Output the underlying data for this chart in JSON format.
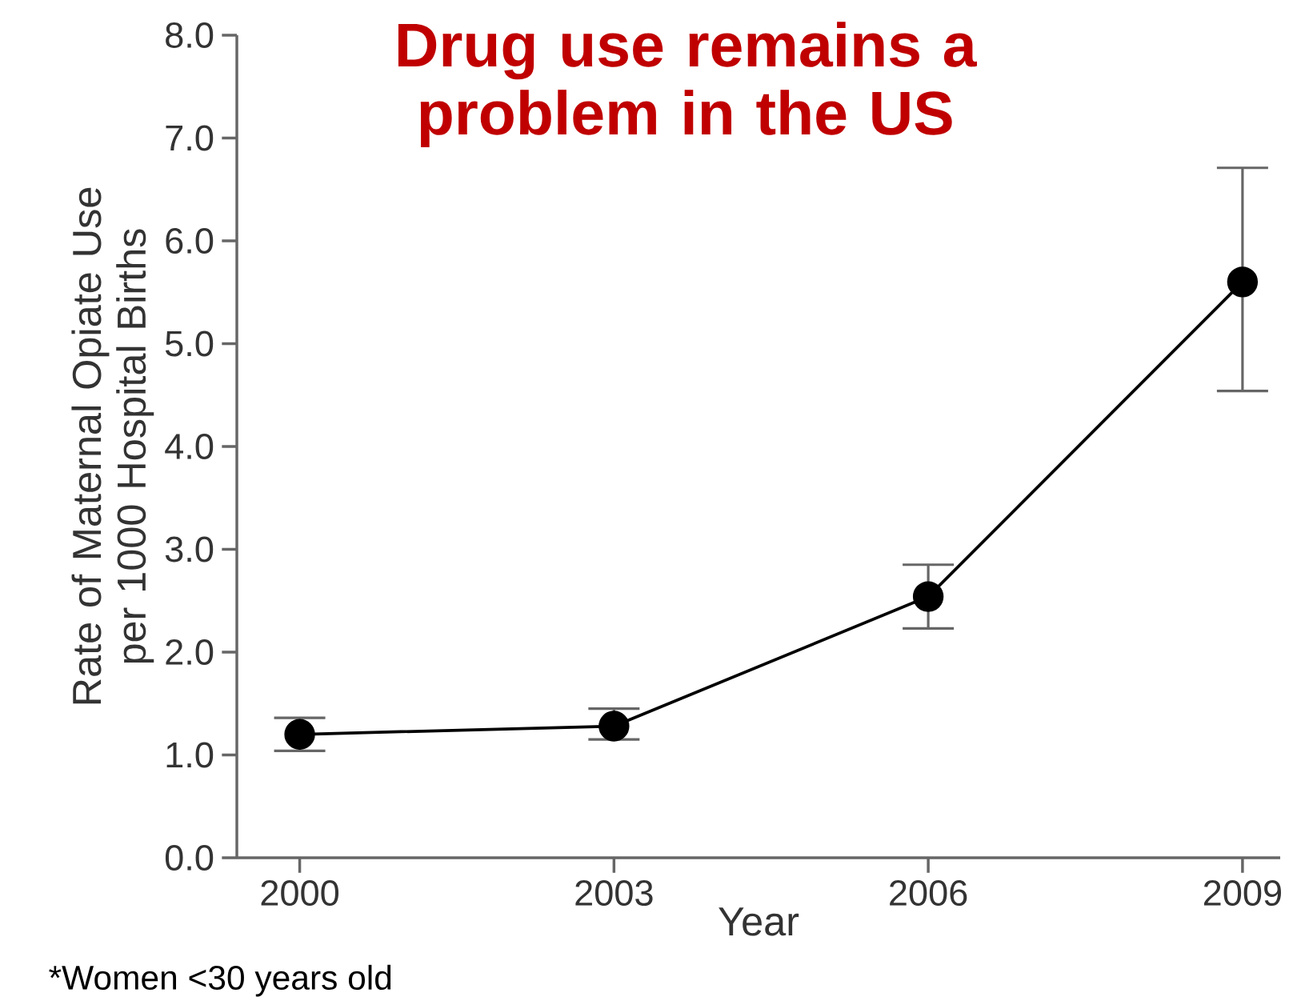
{
  "chart_data": {
    "type": "line",
    "title": "Drug use remains a problem in the US",
    "xlabel": "Year",
    "ylabel": "Rate of Maternal Opiate Use per 1000 Hospital Births",
    "categories": [
      "2000",
      "2003",
      "2006",
      "2009"
    ],
    "series": [
      {
        "color": "#000000",
        "values": [
          1.2,
          1.28,
          2.54,
          5.6
        ],
        "errors": [
          [
            1.04,
            1.36
          ],
          [
            1.15,
            1.45
          ],
          [
            2.23,
            2.85
          ],
          [
            4.54,
            6.71
          ]
        ]
      }
    ],
    "ylim": [
      0,
      8
    ],
    "yticks": [
      {
        "value": 0,
        "label": "0.0"
      },
      {
        "value": 1,
        "label": "1.0"
      },
      {
        "value": 2,
        "label": "2.0"
      },
      {
        "value": 3,
        "label": "3.0"
      },
      {
        "value": 4,
        "label": "4.0"
      },
      {
        "value": 5,
        "label": "5.0"
      },
      {
        "value": 6,
        "label": "6.0"
      },
      {
        "value": 7,
        "label": "7.0"
      },
      {
        "value": 8,
        "label": "8.0"
      }
    ],
    "marker": "circle",
    "line_style": "solid",
    "annotations": [
      "*Women <30 years old"
    ]
  }
}
